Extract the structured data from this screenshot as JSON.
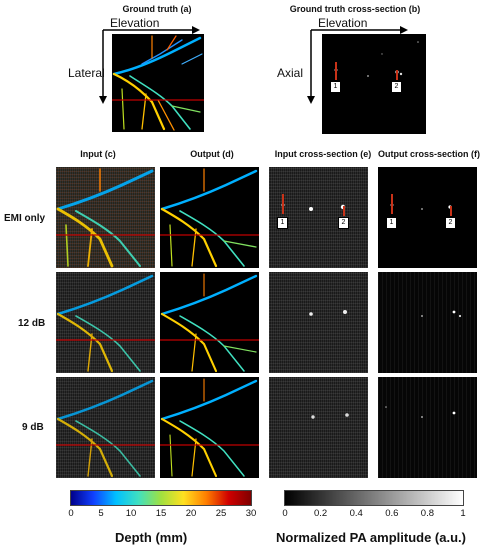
{
  "top": {
    "panel_a_title": "Ground truth (a)",
    "panel_b_title": "Ground truth cross-section (b)",
    "elevation_label_a": "Elevation",
    "lateral_label": "Lateral",
    "elevation_label_b": "Elevation",
    "axial_label": "Axial",
    "marker_1": "1",
    "marker_2": "2"
  },
  "columns": [
    "Input (c)",
    "Output (d)",
    "Input cross-section (e)",
    "Output cross-section (f)"
  ],
  "rows": [
    "EMI only",
    "12 dB",
    "9 dB"
  ],
  "colorbar_depth": {
    "ticks": [
      "0",
      "5",
      "10",
      "15",
      "20",
      "25",
      "30"
    ],
    "title": "Depth (mm)"
  },
  "colorbar_amplitude": {
    "ticks": [
      "0",
      "0.2",
      "0.4",
      "0.6",
      "0.8",
      "1"
    ],
    "title": "Normalized PA amplitude (a.u.)"
  },
  "colors": {
    "depth_gradient": [
      "#00008b",
      "#1040ff",
      "#00c0ff",
      "#40e0c0",
      "#a0e040",
      "#ffe020",
      "#ff8000",
      "#d00000",
      "#800000"
    ],
    "marker_arrow": "#c83218"
  }
}
